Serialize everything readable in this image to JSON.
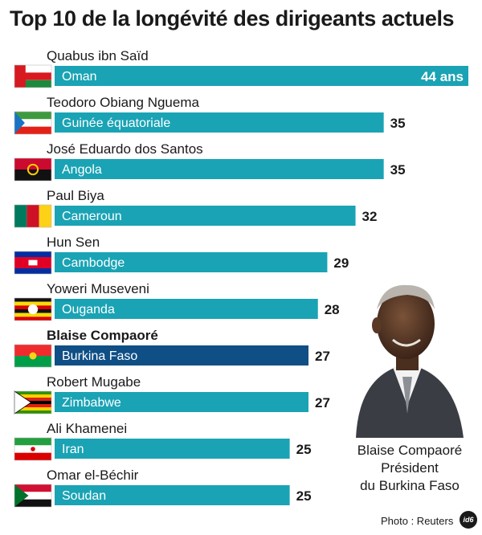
{
  "title": "Top 10 de la longévité des dirigeants actuels",
  "caption": {
    "name": "Blaise Compaoré",
    "role": "Président",
    "country": "du Burkina Faso"
  },
  "credit": "Photo : Reuters",
  "logo": "id6",
  "unit": "ans",
  "colors": {
    "bar": "#1aa3b4",
    "highlight": "#0f4f86",
    "bar_text": "#ffffff",
    "value_text": "#1a1a1a"
  },
  "chart_data": {
    "type": "bar",
    "orientation": "horizontal",
    "xlim": [
      0,
      44
    ],
    "grid": false,
    "categories": [
      "Oman",
      "Guinée équatoriale",
      "Angola",
      "Cameroun",
      "Cambodge",
      "Ouganda",
      "Burkina Faso",
      "Zimbabwe",
      "Iran",
      "Soudan"
    ],
    "leaders": [
      "Quabus ibn Saïd",
      "Teodoro Obiang Nguema",
      "José Eduardo dos Santos",
      "Paul Biya",
      "Hun Sen",
      "Yoweri Museveni",
      "Blaise Compaoré",
      "Robert Mugabe",
      "Ali Khamenei",
      "Omar el-Béchir"
    ],
    "values": [
      44,
      35,
      35,
      32,
      29,
      28,
      27,
      27,
      25,
      25
    ],
    "value_labels": [
      "44 ans",
      "35",
      "35",
      "32",
      "29",
      "28",
      "27",
      "27",
      "25",
      "25"
    ],
    "flags": [
      "oman-flag-icon",
      "equatorial-guinea-flag-icon",
      "angola-flag-icon",
      "cameroon-flag-icon",
      "cambodia-flag-icon",
      "uganda-flag-icon",
      "burkina-faso-flag-icon",
      "zimbabwe-flag-icon",
      "iran-flag-icon",
      "sudan-flag-icon"
    ],
    "highlight": "Burkina Faso"
  }
}
